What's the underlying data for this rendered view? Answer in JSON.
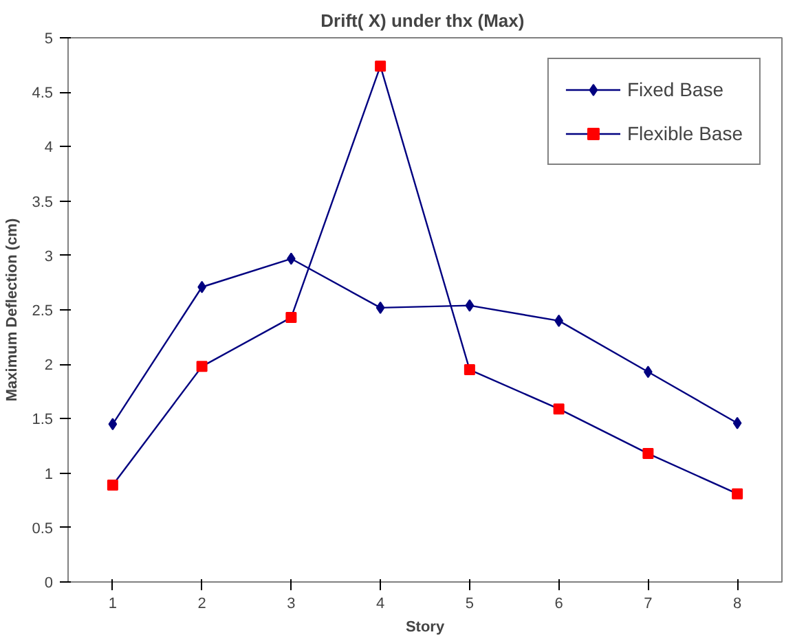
{
  "chart_data": {
    "type": "line",
    "title": "Drift( X) under  thx (Max)",
    "xlabel": "Story",
    "ylabel": "Maximum Deflection (cm)",
    "categories": [
      "1",
      "2",
      "3",
      "4",
      "5",
      "6",
      "7",
      "8"
    ],
    "series": [
      {
        "name": "Fixed Base",
        "color": "#000080",
        "marker": "diamond",
        "values": [
          1.45,
          2.71,
          2.97,
          2.52,
          2.54,
          2.4,
          1.93,
          1.46
        ]
      },
      {
        "name": "Flexible Base",
        "color": "#000080",
        "marker": "square",
        "colors": [
          "#ff0000",
          "#ff0000",
          "#ff0000",
          "#ff0000",
          "#ff0000",
          "#ff0000",
          "#ff0000",
          "#ff0000"
        ],
        "values": [
          0.89,
          1.98,
          2.43,
          4.74,
          1.95,
          1.59,
          1.18,
          0.81
        ]
      }
    ],
    "ylim": [
      0,
      5
    ],
    "yticks": [
      0,
      0.5,
      1,
      1.5,
      2,
      2.5,
      3,
      3.5,
      4,
      4.5,
      5
    ],
    "grid": false,
    "legend": "top right",
    "line_style": "solid"
  }
}
